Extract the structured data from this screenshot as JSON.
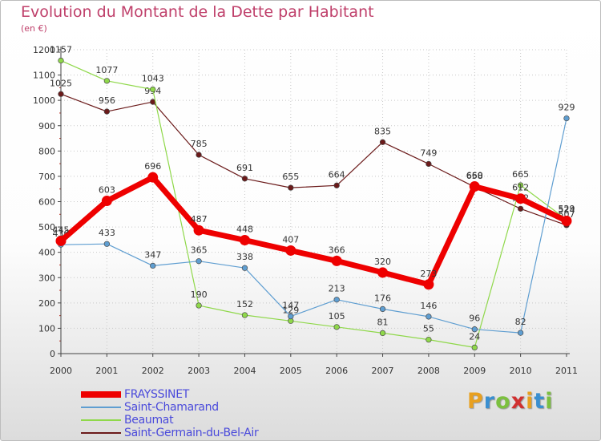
{
  "title": "Evolution du Montant de la Dette par Habitant",
  "subtitle": "(en €)",
  "brand": {
    "text": "Proxiti",
    "colors": [
      "#e8a020",
      "#3a8fd0",
      "#7cc040",
      "#d03030",
      "#e8a020",
      "#3a8fd0",
      "#7cc040"
    ]
  },
  "chart_data": {
    "type": "line",
    "x": [
      "2000",
      "2001",
      "2002",
      "2003",
      "2004",
      "2005",
      "2006",
      "2007",
      "2008",
      "2009",
      "2010",
      "2011"
    ],
    "ylim": [
      0,
      1200
    ],
    "yticks": [
      0,
      100,
      200,
      300,
      400,
      500,
      600,
      700,
      800,
      900,
      1000,
      1100,
      1200
    ],
    "grid": true,
    "legend_position": "bottom-left",
    "series": [
      {
        "name": "Saint-Germain-du-Bel-Air",
        "color": "#6b1a1a",
        "width": 1.2,
        "values": [
          1025,
          956,
          994,
          785,
          691,
          655,
          664,
          835,
          749,
          658,
          572,
          507
        ],
        "labels": [
          "1025",
          "956",
          "994",
          "785",
          "691",
          "655",
          "664",
          "835",
          "749",
          "658",
          "572",
          "507"
        ]
      },
      {
        "name": "Beaumat",
        "color": "#8fd84a",
        "width": 1.2,
        "values": [
          1157,
          1077,
          1043,
          190,
          152,
          129,
          105,
          81,
          55,
          24,
          665,
          529
        ],
        "labels": [
          "1157",
          "1077",
          "1043",
          "190",
          "152",
          "129",
          "105",
          "81",
          "55",
          "24",
          "665",
          "529"
        ]
      },
      {
        "name": "Saint-Chamarand",
        "color": "#5f9ed1",
        "width": 1.2,
        "values": [
          430,
          433,
          347,
          365,
          338,
          147,
          213,
          176,
          146,
          96,
          82,
          929
        ],
        "labels": [
          "430",
          "433",
          "347",
          "365",
          "338",
          "147",
          "213",
          "176",
          "146",
          "96",
          "82",
          "929"
        ]
      },
      {
        "name": "FRAYSSINET",
        "color": "#ee0000",
        "width": 7,
        "values": [
          445,
          603,
          696,
          487,
          448,
          407,
          366,
          320,
          273,
          660,
          612,
          524
        ],
        "labels": [
          "445",
          "603",
          "696",
          "487",
          "448",
          "407",
          "366",
          "320",
          "273",
          "660",
          "612",
          "524"
        ]
      }
    ],
    "legend_order": [
      "FRAYSSINET",
      "Saint-Chamarand",
      "Beaumat",
      "Saint-Germain-du-Bel-Air"
    ]
  }
}
